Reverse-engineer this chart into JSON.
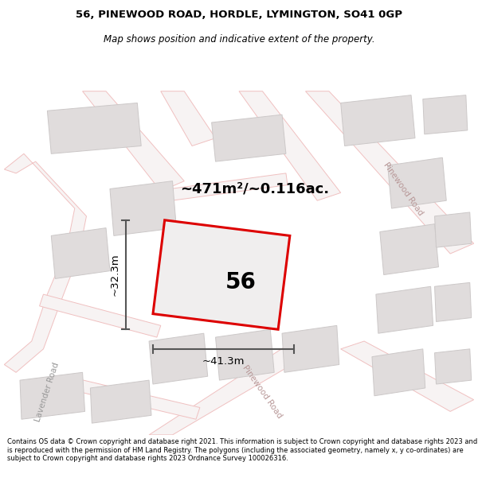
{
  "title_line1": "56, PINEWOOD ROAD, HORDLE, LYMINGTON, SO41 0GP",
  "title_line2": "Map shows position and indicative extent of the property.",
  "area_label": "~471m²/~0.116ac.",
  "width_label": "~41.3m",
  "height_label": "~32.3m",
  "plot_number": "56",
  "footer_text": "Contains OS data © Crown copyright and database right 2021. This information is subject to Crown copyright and database rights 2023 and is reproduced with the permission of HM Land Registry. The polygons (including the associated geometry, namely x, y co-ordinates) are subject to Crown copyright and database rights 2023 Ordnance Survey 100026316.",
  "map_bg": "#f7f6f6",
  "road_color": "#f0c0c0",
  "road_fill": "#f7f3f3",
  "building_color": "#e0dcdc",
  "building_edge": "#ccc8c8",
  "plot_outline_color": "#dd0000",
  "plot_fill_color": "#f0eeee",
  "dimension_color": "#555555",
  "road_label_color": "#b89898",
  "lavender_label_color": "#333333"
}
